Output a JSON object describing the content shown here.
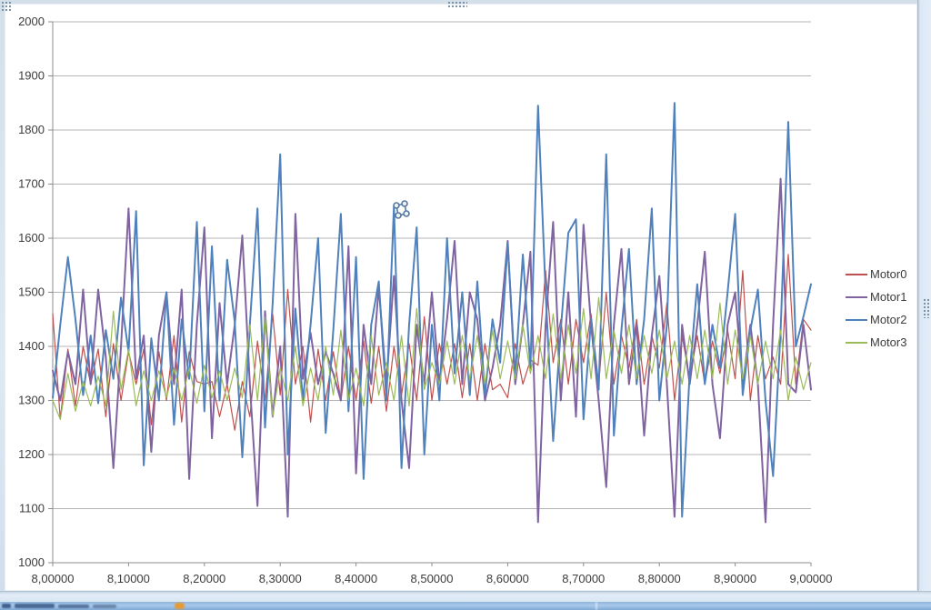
{
  "window": {
    "kind": "spreadsheet-chart-object",
    "frame_color": "#dde9f3",
    "selected": true
  },
  "icons": {
    "cursor_icon": "four-node-move-cursor",
    "taskbar_app_icon": "orange-app-icon"
  },
  "chart_data": {
    "type": "line",
    "title": "",
    "xlabel": "",
    "ylabel": "",
    "xlim": [
      8.0,
      9.0
    ],
    "ylim": [
      1000,
      2000
    ],
    "grid": "horizontal",
    "gridline_color": "#b5b5b5",
    "axis_color": "#8c8c8c",
    "label_color": "#3c3c3c",
    "legend_position": "right",
    "x_start": 8.0,
    "x_step": 0.01,
    "x_tick_labels": [
      "8,00000",
      "8,10000",
      "8,20000",
      "8,30000",
      "8,40000",
      "8,50000",
      "8,60000",
      "8,70000",
      "8,80000",
      "8,90000",
      "9,00000"
    ],
    "y_ticks": [
      1000,
      1100,
      1200,
      1300,
      1400,
      1500,
      1600,
      1700,
      1800,
      1900,
      2000
    ],
    "y_tick_labels": [
      "1000",
      "1100",
      "1200",
      "1300",
      "1400",
      "1500",
      "1600",
      "1700",
      "1800",
      "1900",
      "2000"
    ],
    "series": [
      {
        "name": "Motor0",
        "color": "#C0504D",
        "width": 1.2,
        "values": [
          1460,
          1265,
          1395,
          1290,
          1400,
          1330,
          1395,
          1270,
          1405,
          1300,
          1390,
          1330,
          1395,
          1255,
          1390,
          1300,
          1420,
          1260,
          1390,
          1335,
          1330,
          1335,
          1270,
          1330,
          1245,
          1335,
          1270,
          1410,
          1300,
          1460,
          1310,
          1505,
          1330,
          1400,
          1260,
          1395,
          1300,
          1390,
          1300,
          1400,
          1300,
          1410,
          1295,
          1400,
          1280,
          1400,
          1310,
          1405,
          1300,
          1455,
          1300,
          1405,
          1330,
          1405,
          1305,
          1405,
          1300,
          1405,
          1320,
          1330,
          1305,
          1405,
          1330,
          1375,
          1365,
          1540,
          1370,
          1450,
          1330,
          1450,
          1370,
          1460,
          1330,
          1500,
          1330,
          1420,
          1360,
          1450,
          1330,
          1420,
          1360,
          1480,
          1300,
          1420,
          1340,
          1420,
          1330,
          1410,
          1350,
          1430,
          1340,
          1540,
          1300,
          1420,
          1340,
          1380,
          1330,
          1570,
          1330,
          1450,
          1430
        ]
      },
      {
        "name": "Motor1",
        "color": "#8064A2",
        "width": 2,
        "values": [
          1355,
          1300,
          1390,
          1330,
          1505,
          1330,
          1505,
          1380,
          1175,
          1400,
          1655,
          1340,
          1420,
          1205,
          1420,
          1500,
          1330,
          1505,
          1155,
          1440,
          1620,
          1230,
          1480,
          1330,
          1440,
          1605,
          1330,
          1105,
          1465,
          1270,
          1400,
          1085,
          1645,
          1340,
          1425,
          1330,
          1390,
          1350,
          1300,
          1585,
          1165,
          1440,
          1330,
          1510,
          1330,
          1530,
          1300,
          1175,
          1440,
          1330,
          1500,
          1330,
          1450,
          1595,
          1330,
          1500,
          1450,
          1300,
          1360,
          1440,
          1595,
          1330,
          1440,
          1575,
          1075,
          1440,
          1630,
          1300,
          1500,
          1270,
          1625,
          1440,
          1300,
          1140,
          1440,
          1580,
          1330,
          1440,
          1235,
          1420,
          1530,
          1330,
          1085,
          1440,
          1330,
          1440,
          1575,
          1330,
          1230,
          1440,
          1500,
          1330,
          1440,
          1330,
          1075,
          1440,
          1710,
          1330,
          1315,
          1440,
          1320
        ]
      },
      {
        "name": "Motor2",
        "color": "#4F81BD",
        "width": 2,
        "values": [
          1305,
          1440,
          1565,
          1450,
          1310,
          1420,
          1295,
          1430,
          1340,
          1490,
          1390,
          1650,
          1180,
          1415,
          1300,
          1500,
          1255,
          1450,
          1340,
          1630,
          1280,
          1585,
          1300,
          1560,
          1445,
          1195,
          1440,
          1655,
          1250,
          1480,
          1755,
          1200,
          1470,
          1300,
          1440,
          1600,
          1240,
          1430,
          1645,
          1280,
          1565,
          1155,
          1440,
          1520,
          1300,
          1660,
          1175,
          1440,
          1620,
          1200,
          1440,
          1300,
          1600,
          1350,
          1500,
          1310,
          1520,
          1310,
          1450,
          1370,
          1590,
          1345,
          1570,
          1360,
          1845,
          1500,
          1225,
          1430,
          1610,
          1635,
          1265,
          1450,
          1320,
          1755,
          1235,
          1430,
          1580,
          1330,
          1450,
          1655,
          1300,
          1440,
          1850,
          1085,
          1350,
          1515,
          1330,
          1440,
          1360,
          1500,
          1645,
          1310,
          1430,
          1505,
          1300,
          1160,
          1430,
          1815,
          1400,
          1455,
          1515
        ]
      },
      {
        "name": "Motor3",
        "color": "#9BBB59",
        "width": 1.2,
        "values": [
          1300,
          1265,
          1350,
          1280,
          1335,
          1290,
          1345,
          1290,
          1465,
          1320,
          1395,
          1290,
          1355,
          1300,
          1355,
          1305,
          1360,
          1300,
          1360,
          1295,
          1365,
          1305,
          1355,
          1300,
          1360,
          1305,
          1440,
          1300,
          1455,
          1270,
          1360,
          1300,
          1400,
          1290,
          1360,
          1300,
          1400,
          1310,
          1430,
          1300,
          1360,
          1290,
          1420,
          1310,
          1370,
          1300,
          1420,
          1290,
          1470,
          1320,
          1370,
          1330,
          1410,
          1330,
          1420,
          1340,
          1420,
          1330,
          1430,
          1340,
          1410,
          1340,
          1440,
          1350,
          1420,
          1340,
          1460,
          1340,
          1440,
          1350,
          1470,
          1340,
          1490,
          1340,
          1430,
          1350,
          1440,
          1340,
          1420,
          1350,
          1430,
          1340,
          1410,
          1330,
          1420,
          1340,
          1430,
          1340,
          1480,
          1330,
          1430,
          1340,
          1420,
          1330,
          1410,
          1340,
          1430,
          1300,
          1380,
          1320,
          1370
        ]
      }
    ]
  }
}
